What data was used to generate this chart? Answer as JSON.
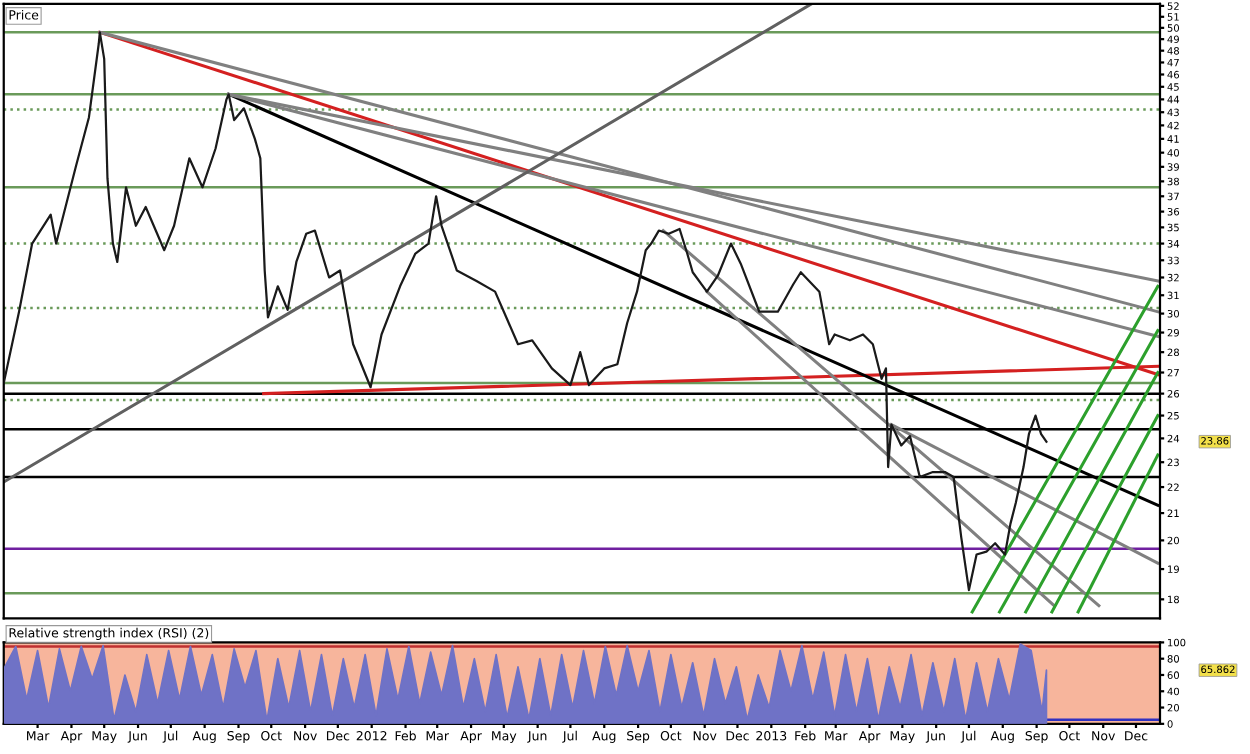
{
  "chart_data": [
    {
      "type": "line",
      "title": "Price",
      "log": "y",
      "tick_labels": "y",
      "grid": false,
      "legend": false,
      "xlim": [
        "2011-01-29",
        "2013-12-23"
      ],
      "ylim": [
        17.4,
        52.2
      ],
      "yticks": [
        18,
        19,
        20,
        21,
        22,
        23,
        24,
        25,
        26,
        27,
        28,
        29,
        30,
        31,
        32,
        33,
        34,
        35,
        36,
        37,
        38,
        39,
        40,
        41,
        42,
        43,
        44,
        45,
        46,
        47,
        48,
        49,
        50,
        51,
        52
      ],
      "annotations": [
        "23.86"
      ],
      "series": [
        {
          "color": "#1a1a1a",
          "x": [
            "2011-01-29",
            "2011-02-12",
            "2011-02-24",
            "2011-03-13",
            "2011-03-18",
            "2011-04-05",
            "2011-04-17",
            "2011-04-26",
            "2011-04-27",
            "2011-05-01",
            "2011-05-04",
            "2011-05-09",
            "2011-05-13",
            "2011-05-21",
            "2011-05-30",
            "2011-06-08",
            "2011-06-25",
            "2011-07-04",
            "2011-07-18",
            "2011-07-30",
            "2011-08-11",
            "2011-08-21",
            "2011-08-23",
            "2011-08-28",
            "2011-09-06",
            "2011-09-16",
            "2011-09-21",
            "2011-09-25",
            "2011-09-28",
            "2011-10-07",
            "2011-10-16",
            "2011-10-24",
            "2011-11-02",
            "2011-11-10",
            "2011-11-23",
            "2011-12-03",
            "2011-12-15",
            "2011-12-31",
            "2012-01-10",
            "2012-01-27",
            "2012-02-10",
            "2012-02-22",
            "2012-02-29",
            "2012-03-05",
            "2012-03-19",
            "2012-04-06",
            "2012-04-23",
            "2012-05-14",
            "2012-05-27",
            "2012-06-14",
            "2012-07-01",
            "2012-07-10",
            "2012-07-18",
            "2012-08-01",
            "2012-08-13",
            "2012-08-22",
            "2012-08-31",
            "2012-09-08",
            "2012-09-13",
            "2012-09-20",
            "2012-09-29",
            "2012-10-09",
            "2012-10-16",
            "2012-10-21",
            "2012-11-03",
            "2012-11-13",
            "2012-11-25",
            "2012-12-04",
            "2012-12-21",
            "2013-01-07",
            "2013-01-21",
            "2013-01-28",
            "2013-02-14",
            "2013-02-23",
            "2013-02-28",
            "2013-03-14",
            "2013-03-26",
            "2013-04-04",
            "2013-04-12",
            "2013-04-16",
            "2013-04-18",
            "2013-04-21",
            "2013-04-30",
            "2013-05-08",
            "2013-05-17",
            "2013-05-29",
            "2013-06-09",
            "2013-06-17",
            "2013-06-24",
            "2013-07-01",
            "2013-07-08",
            "2013-07-17",
            "2013-07-25",
            "2013-08-03",
            "2013-08-08",
            "2013-08-13",
            "2013-08-20",
            "2013-08-25",
            "2013-08-31",
            "2013-09-05",
            "2013-09-10"
          ],
          "values": [
            26.5,
            30.1,
            34.0,
            35.8,
            34.0,
            39.0,
            42.6,
            48.6,
            49.6,
            47.3,
            38.2,
            34.0,
            32.9,
            37.6,
            35.1,
            36.3,
            33.6,
            35.1,
            39.6,
            37.6,
            40.3,
            44.0,
            44.4,
            42.4,
            43.3,
            41.0,
            39.6,
            32.4,
            29.8,
            31.5,
            30.2,
            32.9,
            34.6,
            34.8,
            32.0,
            32.4,
            28.4,
            26.3,
            28.9,
            31.5,
            33.4,
            34.0,
            37.0,
            35.1,
            32.4,
            31.8,
            31.2,
            28.4,
            28.6,
            27.2,
            26.4,
            28.0,
            26.4,
            27.2,
            27.4,
            29.5,
            31.2,
            33.6,
            34.0,
            34.8,
            34.6,
            34.9,
            33.4,
            32.3,
            31.2,
            32.1,
            34.0,
            32.8,
            30.1,
            30.1,
            31.6,
            32.3,
            31.2,
            28.4,
            28.9,
            28.6,
            28.9,
            28.4,
            26.7,
            27.2,
            22.8,
            24.6,
            23.7,
            24.1,
            22.4,
            22.6,
            22.6,
            22.4,
            20.1,
            18.3,
            19.5,
            19.6,
            19.9,
            19.5,
            20.6,
            21.4,
            22.8,
            24.2,
            25.0,
            24.2,
            23.86
          ]
        },
        {
          "color": "#d42020",
          "x": [
            "2011-04-27",
            "2013-12-21"
          ],
          "values": [
            49.6,
            26.9
          ]
        },
        {
          "color": "#d42020",
          "x": [
            "2011-09-24",
            "2013-12-21"
          ],
          "values": [
            26.0,
            27.3
          ]
        },
        {
          "color": "#000000",
          "x": [
            "2011-08-23",
            "2013-12-21"
          ],
          "values": [
            44.4,
            21.3
          ]
        },
        {
          "color": "#808080",
          "x": [
            "2011-08-23",
            "2013-12-21"
          ],
          "values": [
            44.4,
            31.8
          ]
        },
        {
          "color": "#808080",
          "x": [
            "2011-08-23",
            "2013-12-21"
          ],
          "values": [
            44.4,
            28.8
          ]
        },
        {
          "color": "#808080",
          "x": [
            "2011-04-27",
            "2013-12-21"
          ],
          "values": [
            49.6,
            30.1
          ]
        },
        {
          "color": "#606060",
          "x": [
            "2011-01-29",
            "2013-02-07"
          ],
          "values": [
            22.2,
            52.2
          ]
        },
        {
          "color": "#808080",
          "x": [
            "2012-09-24",
            "2013-10-28"
          ],
          "values": [
            34.8,
            17.8
          ]
        },
        {
          "color": "#808080",
          "x": [
            "2012-11-03",
            "2013-09-17"
          ],
          "values": [
            31.2,
            17.8
          ]
        },
        {
          "color": "#808080",
          "x": [
            "2013-04-21",
            "2013-12-21"
          ],
          "values": [
            24.6,
            19.2
          ]
        },
        {
          "color": "#2ca02c",
          "x": [
            "2013-07-04",
            "2013-12-21"
          ],
          "values": [
            17.6,
            31.5
          ]
        },
        {
          "color": "#2ca02c",
          "x": [
            "2013-07-29",
            "2013-12-21"
          ],
          "values": [
            17.6,
            29.1
          ]
        },
        {
          "color": "#2ca02c",
          "x": [
            "2013-08-22",
            "2013-12-21"
          ],
          "values": [
            17.6,
            27.0
          ]
        },
        {
          "color": "#2ca02c",
          "x": [
            "2013-09-15",
            "2013-12-21"
          ],
          "values": [
            17.6,
            25.0
          ]
        },
        {
          "color": "#2ca02c",
          "x": [
            "2013-10-09",
            "2013-12-21"
          ],
          "values": [
            17.6,
            23.3
          ]
        }
      ],
      "ref_lines": [
        {
          "axis": "y",
          "value": 49.6,
          "color": "#6a9a5a"
        },
        {
          "axis": "y",
          "value": 44.4,
          "color": "#6a9a5a"
        },
        {
          "axis": "y",
          "value": 43.2,
          "color": "#6a9a5a",
          "line_style": "dotted"
        },
        {
          "axis": "y",
          "value": 37.6,
          "color": "#6a9a5a"
        },
        {
          "axis": "y",
          "value": 34.0,
          "color": "#6a9a5a",
          "line_style": "dotted"
        },
        {
          "axis": "y",
          "value": 30.3,
          "color": "#6a9a5a",
          "line_style": "dotted"
        },
        {
          "axis": "y",
          "value": 26.5,
          "color": "#6a9a5a"
        },
        {
          "axis": "y",
          "value": 26.0,
          "color": "#000000"
        },
        {
          "axis": "y",
          "value": 25.7,
          "color": "#6a9a5a",
          "line_style": "dotted"
        },
        {
          "axis": "y",
          "value": 24.4,
          "color": "#000000"
        },
        {
          "axis": "y",
          "value": 22.4,
          "color": "#000000"
        },
        {
          "axis": "y",
          "value": 19.7,
          "color": "#7020a0"
        },
        {
          "axis": "y",
          "value": 18.2,
          "color": "#6a9a5a"
        }
      ]
    },
    {
      "type": "area",
      "title": "Relative strength index (RSI) (2)",
      "grid": false,
      "legend": false,
      "xlim": [
        "2011-01-29",
        "2013-12-23"
      ],
      "ylim": [
        0,
        100
      ],
      "yticks": [
        0,
        20,
        40,
        60,
        80,
        100
      ],
      "xticks": [
        {
          "value": "2011-03-01",
          "label": "Mar"
        },
        {
          "value": "2011-04-01",
          "label": "Apr"
        },
        {
          "value": "2011-05-01",
          "label": "May"
        },
        {
          "value": "2011-06-01",
          "label": "Jun"
        },
        {
          "value": "2011-07-01",
          "label": "Jul"
        },
        {
          "value": "2011-08-01",
          "label": "Aug"
        },
        {
          "value": "2011-09-01",
          "label": "Sep"
        },
        {
          "value": "2011-10-01",
          "label": "Oct"
        },
        {
          "value": "2011-11-01",
          "label": "Nov"
        },
        {
          "value": "2011-12-01",
          "label": "Dec"
        },
        {
          "value": "2012-01-01",
          "label": "2012"
        },
        {
          "value": "2012-02-01",
          "label": "Feb"
        },
        {
          "value": "2012-03-01",
          "label": "Mar"
        },
        {
          "value": "2012-04-01",
          "label": "Apr"
        },
        {
          "value": "2012-05-01",
          "label": "May"
        },
        {
          "value": "2012-06-01",
          "label": "Jun"
        },
        {
          "value": "2012-07-01",
          "label": "Jul"
        },
        {
          "value": "2012-08-01",
          "label": "Aug"
        },
        {
          "value": "2012-09-01",
          "label": "Sep"
        },
        {
          "value": "2012-10-01",
          "label": "Oct"
        },
        {
          "value": "2012-11-01",
          "label": "Nov"
        },
        {
          "value": "2012-12-01",
          "label": "Dec"
        },
        {
          "value": "2013-01-01",
          "label": "2013"
        },
        {
          "value": "2013-02-01",
          "label": "Feb"
        },
        {
          "value": "2013-03-01",
          "label": "Mar"
        },
        {
          "value": "2013-04-01",
          "label": "Apr"
        },
        {
          "value": "2013-05-01",
          "label": "May"
        },
        {
          "value": "2013-06-01",
          "label": "Jun"
        },
        {
          "value": "2013-07-01",
          "label": "Jul"
        },
        {
          "value": "2013-08-01",
          "label": "Aug"
        },
        {
          "value": "2013-09-01",
          "label": "Sep"
        },
        {
          "value": "2013-10-01",
          "label": "Oct"
        },
        {
          "value": "2013-11-01",
          "label": "Nov"
        },
        {
          "value": "2013-12-01",
          "label": "Dec"
        }
      ],
      "annotations": [
        "65.862"
      ],
      "bands": [
        {
          "axis": "y",
          "from": 0,
          "to": 100,
          "color": "#f7b59c"
        }
      ],
      "ref_lines": [
        {
          "axis": "y",
          "value": 95,
          "color": "#c03030"
        },
        {
          "axis": "y",
          "value": 5,
          "color": "#3030c0"
        }
      ],
      "series": [
        {
          "color": "#6f72c6",
          "x": [
            "2011-01-30",
            "2011-02-09",
            "2011-02-19",
            "2011-03-01",
            "2011-03-11",
            "2011-03-21",
            "2011-03-31",
            "2011-04-10",
            "2011-04-20",
            "2011-04-30",
            "2011-05-10",
            "2011-05-20",
            "2011-05-30",
            "2011-06-09",
            "2011-06-19",
            "2011-06-29",
            "2011-07-09",
            "2011-07-19",
            "2011-07-29",
            "2011-08-08",
            "2011-08-18",
            "2011-08-28",
            "2011-09-07",
            "2011-09-17",
            "2011-09-27",
            "2011-10-07",
            "2011-10-17",
            "2011-10-27",
            "2011-11-06",
            "2011-11-16",
            "2011-11-26",
            "2011-12-06",
            "2011-12-16",
            "2011-12-26",
            "2012-01-05",
            "2012-01-15",
            "2012-01-25",
            "2012-02-04",
            "2012-02-14",
            "2012-02-24",
            "2012-03-05",
            "2012-03-15",
            "2012-03-25",
            "2012-04-04",
            "2012-04-14",
            "2012-04-24",
            "2012-05-04",
            "2012-05-14",
            "2012-05-24",
            "2012-06-03",
            "2012-06-13",
            "2012-06-23",
            "2012-07-03",
            "2012-07-13",
            "2012-07-23",
            "2012-08-02",
            "2012-08-12",
            "2012-08-22",
            "2012-09-01",
            "2012-09-11",
            "2012-09-21",
            "2012-10-01",
            "2012-10-11",
            "2012-10-21",
            "2012-10-31",
            "2012-11-10",
            "2012-11-20",
            "2012-11-30",
            "2012-12-10",
            "2012-12-20",
            "2012-12-30",
            "2013-01-09",
            "2013-01-19",
            "2013-01-29",
            "2013-02-08",
            "2013-02-18",
            "2013-02-28",
            "2013-03-10",
            "2013-03-20",
            "2013-03-30",
            "2013-04-09",
            "2013-04-19",
            "2013-04-29",
            "2013-05-09",
            "2013-05-19",
            "2013-05-29",
            "2013-06-08",
            "2013-06-18",
            "2013-06-28",
            "2013-07-08",
            "2013-07-18",
            "2013-07-28",
            "2013-08-07",
            "2013-08-17",
            "2013-08-27",
            "2013-09-06",
            "2013-09-10"
          ],
          "values": [
            70,
            95,
            30,
            90,
            20,
            92,
            40,
            95,
            55,
            96,
            5,
            60,
            15,
            85,
            25,
            90,
            30,
            95,
            35,
            85,
            20,
            92,
            45,
            90,
            4,
            80,
            20,
            90,
            15,
            85,
            10,
            80,
            20,
            85,
            10,
            92,
            30,
            95,
            25,
            88,
            35,
            96,
            20,
            80,
            15,
            85,
            8,
            70,
            6,
            80,
            10,
            85,
            20,
            90,
            25,
            95,
            35,
            96,
            40,
            90,
            15,
            85,
            20,
            75,
            10,
            80,
            25,
            70,
            5,
            60,
            20,
            90,
            40,
            96,
            30,
            88,
            10,
            85,
            15,
            80,
            5,
            70,
            20,
            85,
            10,
            75,
            15,
            80,
            5,
            75,
            15,
            80,
            30,
            98,
            90,
            15,
            65.862
          ]
        }
      ]
    }
  ]
}
